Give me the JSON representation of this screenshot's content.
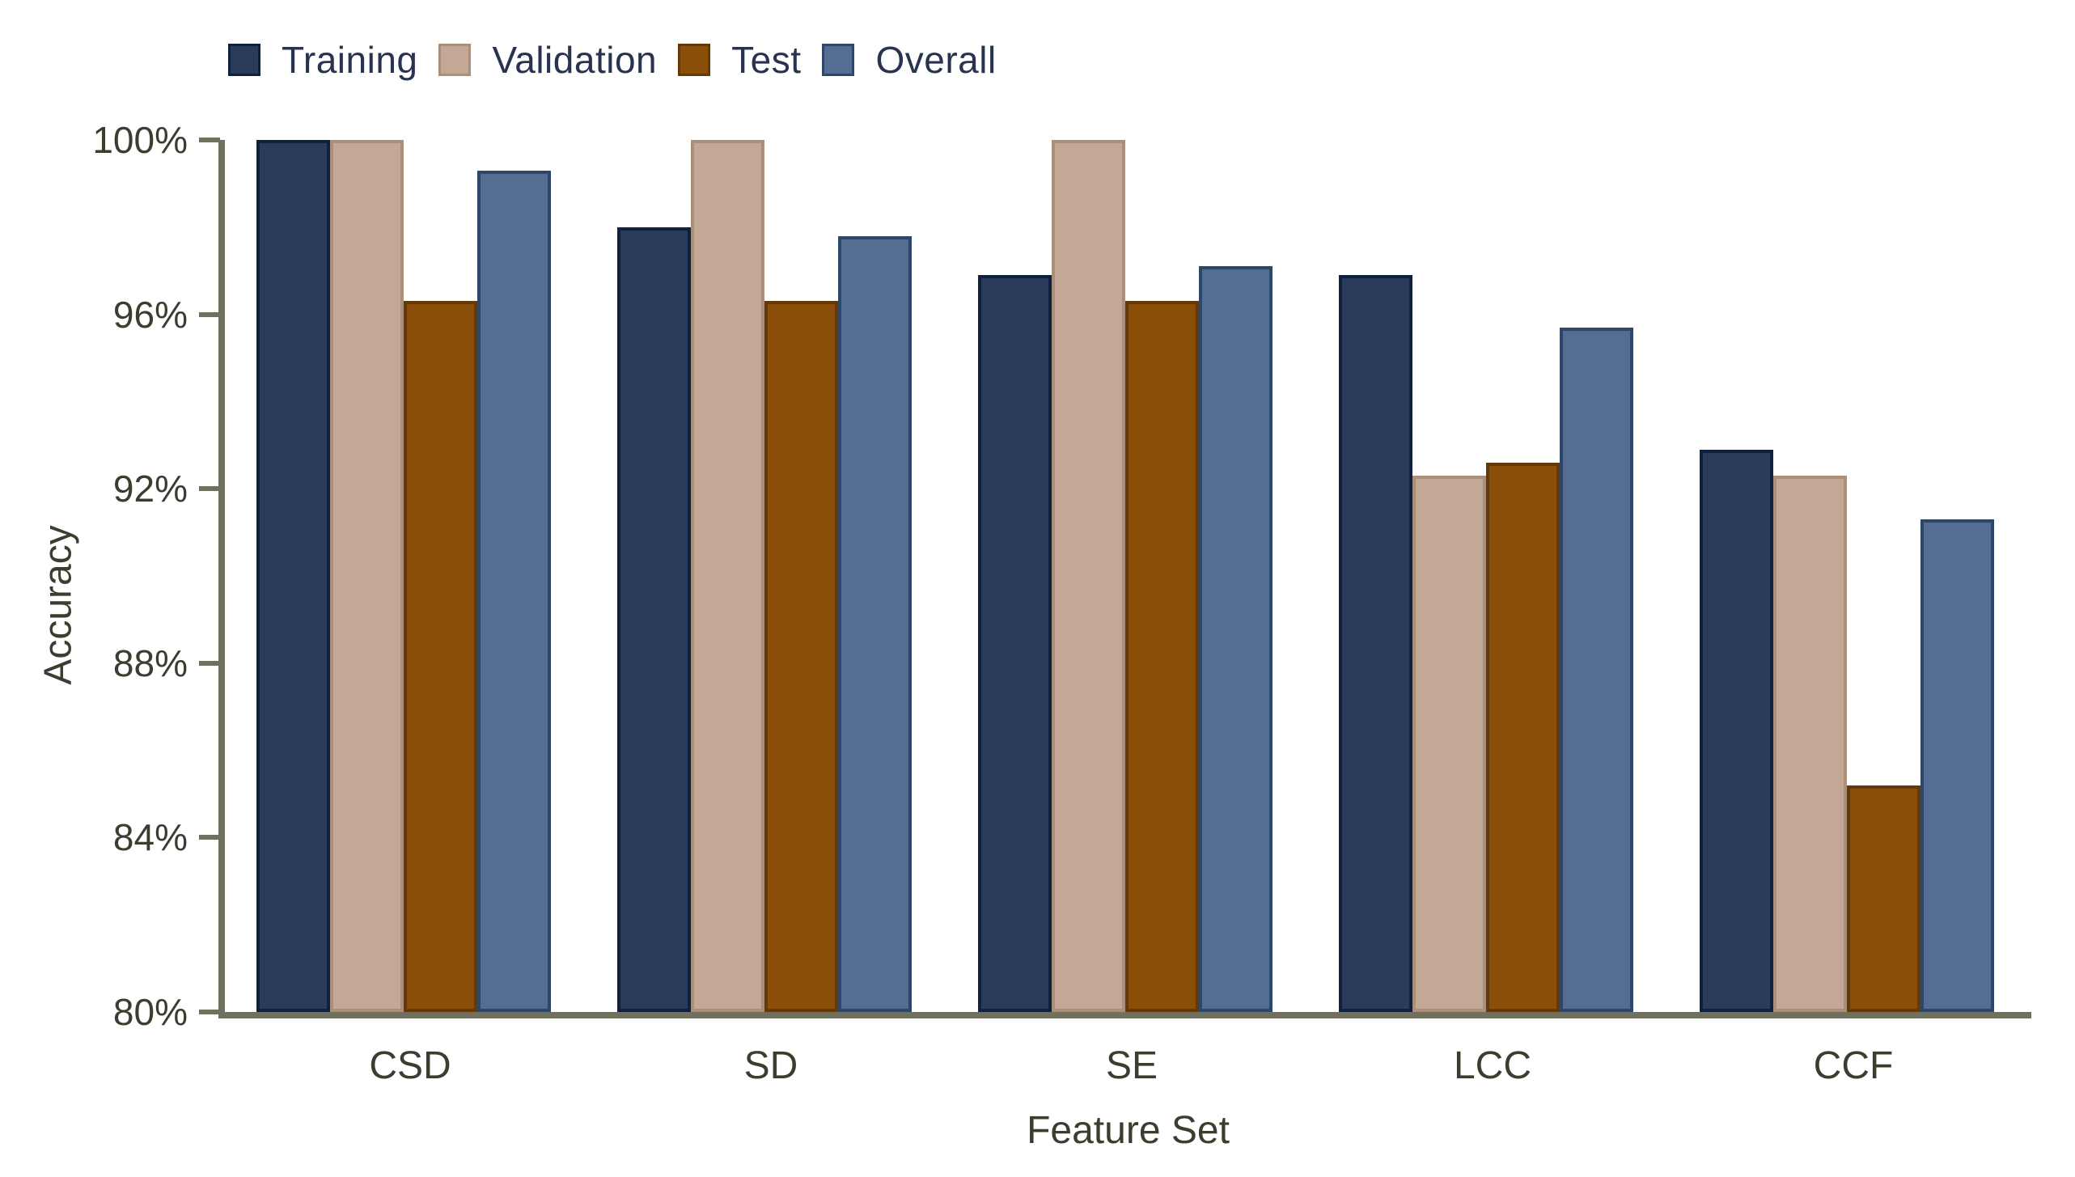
{
  "chart_data": {
    "type": "bar",
    "title": "",
    "categories": [
      "CSD",
      "SD",
      "SE",
      "LCC",
      "CCF"
    ],
    "series": [
      {
        "name": "Training",
        "color": "#2b3b5c",
        "border_color": "#10203f",
        "values": [
          100.0,
          98.0,
          96.9,
          96.9,
          92.9
        ]
      },
      {
        "name": "Validation",
        "color": "#c3a995",
        "border_color": "#aa8f7a",
        "values": [
          100.0,
          100.0,
          100.0,
          92.3,
          92.3
        ]
      },
      {
        "name": "Test",
        "color": "#8a4e08",
        "border_color": "#653905",
        "values": [
          96.3,
          96.3,
          96.3,
          92.6,
          85.2
        ]
      },
      {
        "name": "Overall",
        "color": "#566d93",
        "border_color": "#2e4668",
        "values": [
          99.3,
          97.8,
          97.1,
          95.7,
          91.3
        ]
      }
    ],
    "xlabel": "Feature Set",
    "ylabel": "Accuracy",
    "ylim": [
      80,
      100
    ],
    "yticks": [
      100,
      96,
      92,
      88,
      84,
      80
    ],
    "ytick_labels": [
      "100%",
      "96%",
      "92%",
      "88%",
      "84%",
      "80%"
    ],
    "grid": false,
    "legend_position": "top-left"
  },
  "legend": {
    "items": [
      "Training",
      "Validation",
      "Test",
      "Overall"
    ]
  },
  "axis_style": {
    "line_color": "#6f705e",
    "tick_label_color": "#3b3e2e",
    "legend_text_color": "#27334f"
  }
}
